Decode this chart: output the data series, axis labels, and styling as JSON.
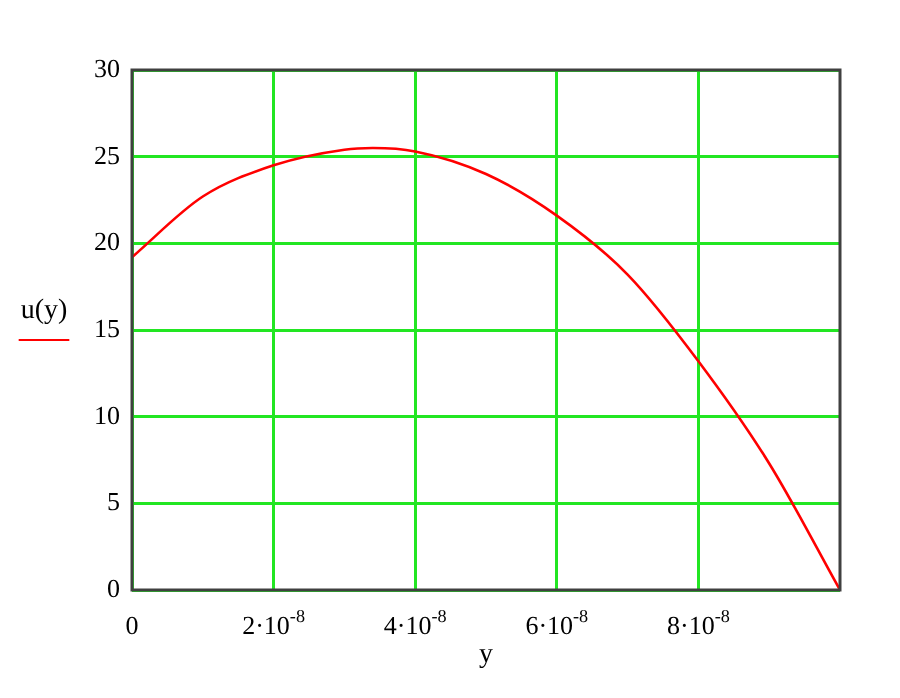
{
  "chart_data": {
    "type": "line",
    "xlabel": "y",
    "ylabel": "u(y)",
    "x": [
      0,
      1e-08,
      2e-08,
      3e-08,
      3.4e-08,
      4e-08,
      5e-08,
      6e-08,
      7e-08,
      8e-08,
      9e-08,
      1e-07
    ],
    "series": [
      {
        "color": "#ff0000",
        "values": [
          19.2,
          22.7,
          24.5,
          25.4,
          25.5,
          25.3,
          24.0,
          21.6,
          18.2,
          13.2,
          7.3,
          0
        ]
      }
    ],
    "xlim": [
      0,
      1e-07
    ],
    "xticks": [
      {
        "value": 0,
        "label": "0"
      },
      {
        "value": 2e-08,
        "label": "2·10$^{-8}$"
      },
      {
        "value": 4e-08,
        "label": "4·10$^{-8}$"
      },
      {
        "value": 6e-08,
        "label": "6·10$^{-8}$"
      },
      {
        "value": 8e-08,
        "label": "8·10$^{-8}$"
      }
    ],
    "ylim": [
      0,
      30
    ],
    "yticks": [
      0,
      5,
      10,
      15,
      20,
      25,
      30
    ],
    "grid": true,
    "legend": false,
    "marker": "none",
    "line_style": "solid"
  }
}
